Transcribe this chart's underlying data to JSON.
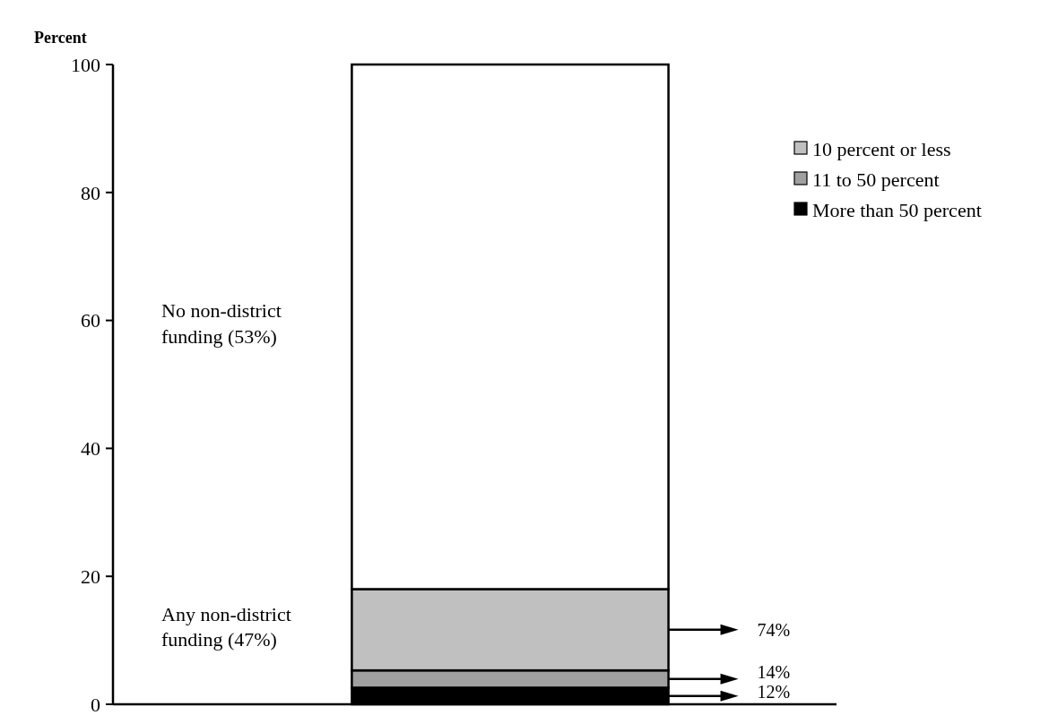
{
  "chart_data": {
    "type": "bar",
    "stacked": true,
    "ylabel": "Percent",
    "categories": [
      null
    ],
    "series": [
      {
        "name": "More than 50 percent",
        "color": "#000000",
        "values": [
          2.6
        ]
      },
      {
        "name": "11 to 50 percent",
        "color": "#a0a0a0",
        "values": [
          2.7
        ]
      },
      {
        "name": "10 percent or less",
        "color": "#c0c0c0",
        "values": [
          12.7
        ]
      },
      {
        "color": "#ffffff",
        "values": [
          82
        ]
      }
    ],
    "ylim": [
      0,
      100
    ],
    "yticks": [
      0,
      20,
      40,
      60,
      80,
      100
    ],
    "legend": "top right",
    "annotations": [
      "No non-district funding (53%)",
      "Any non-district funding (47%)",
      "74%",
      "14%",
      "12%"
    ]
  }
}
